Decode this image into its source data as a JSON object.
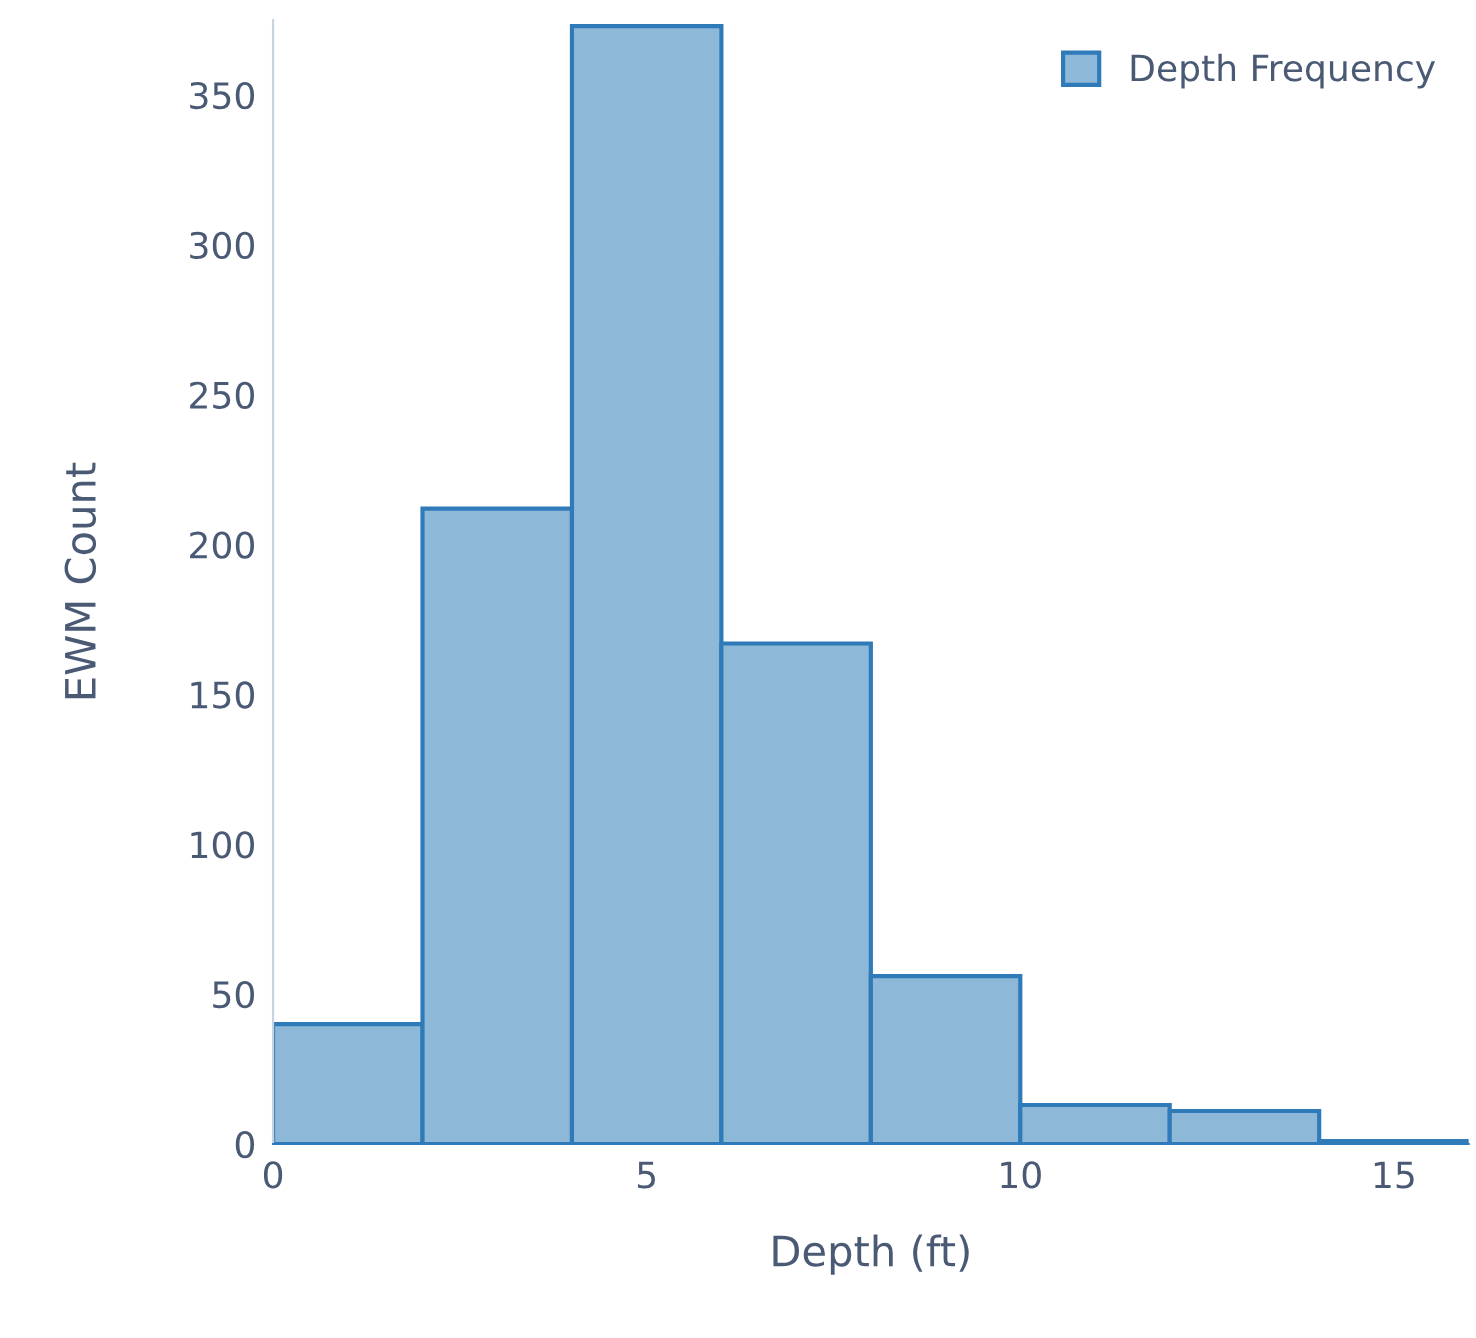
{
  "chart_data": {
    "type": "histogram",
    "xlabel": "Depth (ft)",
    "ylabel": "EWM Count",
    "bins": [
      0,
      2,
      4,
      6,
      8,
      10,
      12,
      14,
      16
    ],
    "series": [
      {
        "name": "Depth Frequency",
        "color": "#8eb8d8",
        "values": [
          40,
          212,
          373,
          167,
          56,
          13,
          11,
          1
        ]
      }
    ],
    "xlim": [
      0,
      16
    ],
    "xticks": [
      0,
      5,
      10,
      15
    ],
    "ylim": [
      0,
      375
    ],
    "yticks": [
      0,
      50,
      100,
      150,
      200,
      250,
      300,
      350
    ],
    "grid": false,
    "legend": "top right"
  }
}
